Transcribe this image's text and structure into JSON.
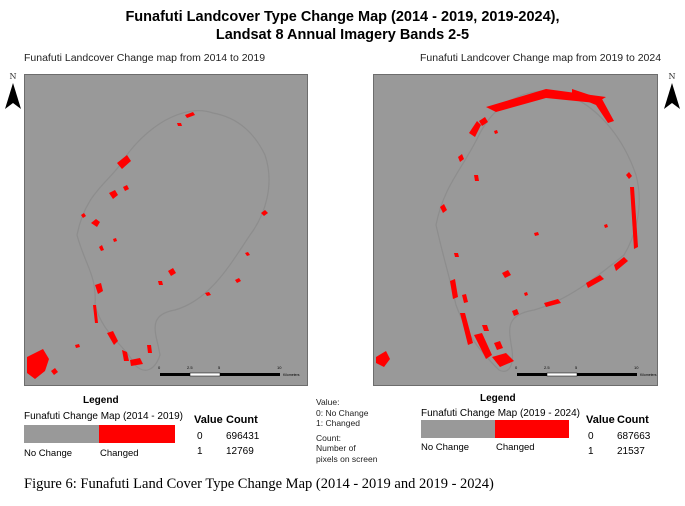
{
  "title": {
    "line1": "Funafuti Landcover Type Change Map (2014 - 2019, 2019-2024),",
    "line2": "Landsat 8 Annual Imagery Bands 2-5"
  },
  "maps": [
    {
      "label": "Funafuti Landcover Change map from 2014 to 2019",
      "north_letter": "N",
      "scale_ticks": [
        "0",
        "2.5",
        "5",
        "10"
      ],
      "scale_unit": "Kilometers"
    },
    {
      "label": "Funafuti Landcover Change map from 2019 to 2024",
      "north_letter": "N",
      "scale_ticks": [
        "0",
        "2.5",
        "5",
        "10"
      ],
      "scale_unit": "Kilometers"
    }
  ],
  "legend": {
    "heading": "Legend",
    "left": {
      "title": "Funafuti Change Map (2014 - 2019)",
      "no_change": "No Change",
      "changed": "Changed",
      "value_header": "Value",
      "count_header": "Count",
      "rows": [
        {
          "value": "0",
          "count": "696431"
        },
        {
          "value": "1",
          "count": "12769"
        }
      ]
    },
    "right": {
      "heading": "Legend",
      "title": "Funafuti Change Map (2019 - 2024)",
      "no_change": "No Change",
      "changed": "Changed",
      "value_header": "Value",
      "count_header": "Count",
      "rows": [
        {
          "value": "0",
          "count": "687663"
        },
        {
          "value": "1",
          "count": "21537"
        }
      ]
    }
  },
  "notes": {
    "value_label": "Value:",
    "value_0": "0: No Change",
    "value_1": "1: Changed",
    "count_label": "Count:",
    "count_line1": "Number of",
    "count_line2": "pixels on screen"
  },
  "caption": "Figure 6: Funafuti Land Cover Type Change Map (2014 - 2019 and 2019 - 2024)",
  "colors": {
    "no_change": "#999999",
    "changed": "#ff0000"
  },
  "icons": [
    "north-arrow-icon"
  ]
}
